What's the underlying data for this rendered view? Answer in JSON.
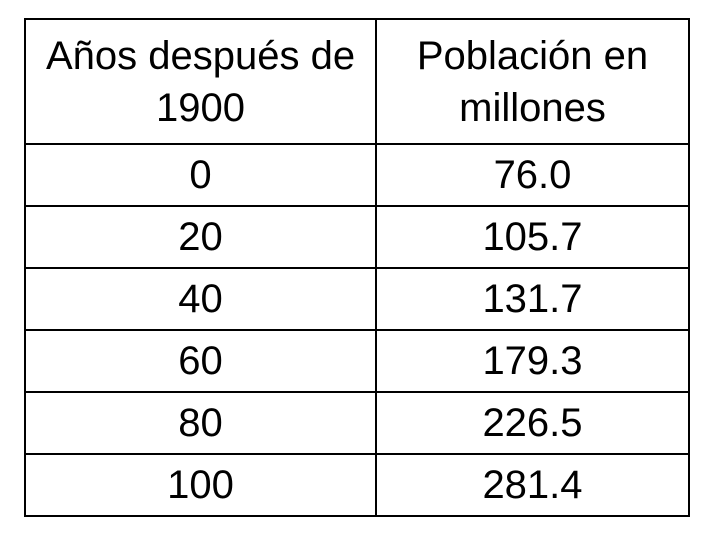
{
  "table": {
    "headers": [
      "Años después de 1900",
      "Población en millones"
    ],
    "rows": [
      [
        "0",
        "76.0"
      ],
      [
        "20",
        "105.7"
      ],
      [
        "40",
        "131.7"
      ],
      [
        "60",
        "179.3"
      ],
      [
        "80",
        "226.5"
      ],
      [
        "100",
        "281.4"
      ]
    ]
  }
}
